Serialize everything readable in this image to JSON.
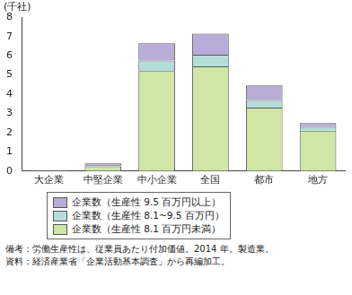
{
  "chart_data": {
    "type": "bar",
    "y_label": "(千社)",
    "categories": [
      "大企業",
      "中堅企業",
      "中小企業",
      "全国",
      "都市",
      "地方"
    ],
    "series": [
      {
        "name": "企業数（生産性 8.1 百万円未満）",
        "color": "#cfe6a6",
        "values": [
          0.03,
          0.25,
          5.2,
          5.45,
          3.3,
          2.1
        ]
      },
      {
        "name": "企業数（生産性 8.1~9.5 百万円）",
        "color": "#b5dedb",
        "values": [
          0.01,
          0.05,
          0.55,
          0.6,
          0.4,
          0.2
        ]
      },
      {
        "name": "企業数（生産性 9.5 百万円以上）",
        "color": "#b8acd9",
        "values": [
          0.01,
          0.1,
          0.9,
          1.1,
          0.75,
          0.2
        ]
      }
    ],
    "ylim": [
      0,
      8
    ],
    "yticks": [
      0,
      1,
      2,
      3,
      4,
      5,
      6,
      7,
      8
    ],
    "stacked": true,
    "grid": false,
    "legend": "bottom",
    "notes": [
      "備考：労働生産性は、従業員あたり付加価値。2014 年。製造業。",
      "資料：経済産業省「企業活動基本調査」から再編加工。"
    ]
  }
}
